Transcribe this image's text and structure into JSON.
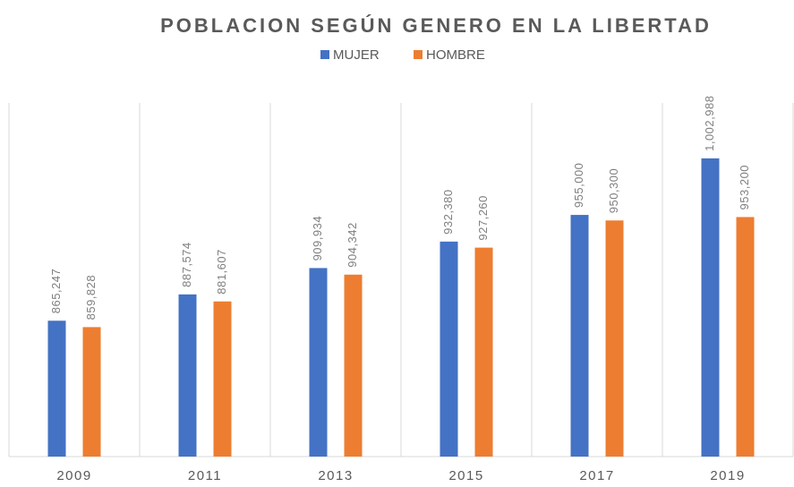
{
  "chart_data": {
    "type": "bar",
    "title": "POBLACION SEGÚN GENERO EN LA LIBERTAD",
    "categories": [
      "2009",
      "2011",
      "2013",
      "2015",
      "2017",
      "2019"
    ],
    "series": [
      {
        "name": "MUJER",
        "color": "#4472c4",
        "values": [
          865247,
          887574,
          909934,
          932380,
          955000,
          1002988
        ],
        "value_labels": [
          "865,247",
          "887,574",
          "909,934",
          "932,380",
          "955,000",
          "1,002,988"
        ]
      },
      {
        "name": "HOMBRE",
        "color": "#ed7d31",
        "values": [
          859828,
          881607,
          904342,
          927260,
          950300,
          953200
        ],
        "value_labels": [
          "859,828",
          "881,607",
          "904,342",
          "927,260",
          "950,300",
          "953,200"
        ]
      }
    ],
    "ylim": [
      750000,
      1050000
    ],
    "grid": true
  }
}
